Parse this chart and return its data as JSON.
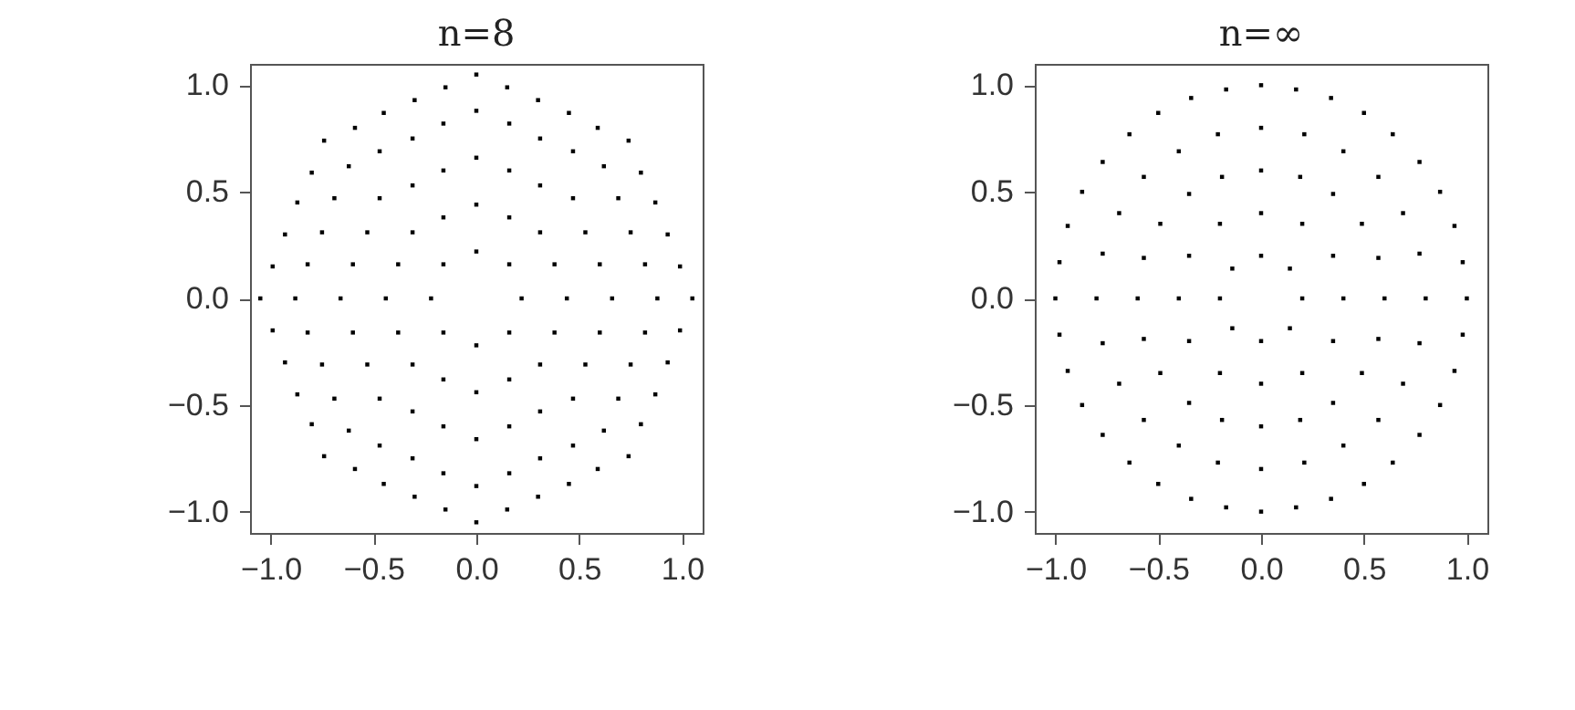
{
  "chart_data": [
    {
      "type": "scatter",
      "title": "n=8",
      "color": "#000000",
      "marker": "square",
      "xlim": [
        -1.1,
        1.1
      ],
      "ylim": [
        -1.1,
        1.1
      ],
      "xticks": [
        {
          "value": -1,
          "label": "−1.0"
        },
        {
          "value": -0.5,
          "label": "−0.5"
        },
        {
          "value": 0,
          "label": "0.0"
        },
        {
          "value": 0.5,
          "label": "0.5"
        },
        {
          "value": 1,
          "label": "1.0"
        }
      ],
      "yticks": [
        {
          "value": -1,
          "label": "−1.0"
        },
        {
          "value": -0.5,
          "label": "−0.5"
        },
        {
          "value": 0,
          "label": "0.0"
        },
        {
          "value": 0.5,
          "label": "0.5"
        },
        {
          "value": 1,
          "label": "1.0"
        }
      ],
      "x": [
        0.22,
        0.16,
        0.44,
        0.38,
        0.31,
        0.16,
        0.66,
        0.6,
        0.53,
        0.47,
        0.31,
        0.16,
        0.88,
        0.82,
        0.75,
        0.69,
        0.62,
        0.47,
        0.31,
        0.16,
        1.05,
        0.99,
        0.93,
        0.87,
        0.8,
        0.74,
        0.59,
        0.45,
        0.3,
        0.15,
        0,
        -0.16,
        0,
        -0.16,
        -0.31,
        -0.38,
        0,
        -0.16,
        -0.31,
        -0.47,
        -0.53,
        -0.6,
        0,
        -0.16,
        -0.31,
        -0.47,
        -0.62,
        -0.69,
        -0.75,
        -0.82,
        0,
        -0.15,
        -0.3,
        -0.45,
        -0.59,
        -0.74,
        -0.8,
        -0.87,
        -0.93,
        -0.99,
        -0.22,
        -0.16,
        -0.44,
        -0.38,
        -0.31,
        -0.16,
        -0.66,
        -0.6,
        -0.53,
        -0.47,
        -0.31,
        -0.16,
        -0.88,
        -0.82,
        -0.75,
        -0.69,
        -0.62,
        -0.47,
        -0.31,
        -0.16,
        -1.05,
        -0.99,
        -0.93,
        -0.87,
        -0.8,
        -0.74,
        -0.59,
        -0.45,
        -0.3,
        -0.15,
        0,
        0.16,
        0,
        0.16,
        0.31,
        0.38,
        0,
        0.16,
        0.31,
        0.47,
        0.53,
        0.6,
        0,
        0.16,
        0.31,
        0.47,
        0.62,
        0.69,
        0.75,
        0.82,
        0,
        0.15,
        0.3,
        0.45,
        0.59,
        0.74,
        0.8,
        0.87,
        0.93,
        0.99
      ],
      "values": [
        0,
        0.16,
        0,
        0.16,
        0.31,
        0.38,
        0,
        0.16,
        0.31,
        0.47,
        0.53,
        0.6,
        0,
        0.16,
        0.31,
        0.47,
        0.62,
        0.69,
        0.75,
        0.82,
        0,
        0.15,
        0.3,
        0.45,
        0.59,
        0.74,
        0.8,
        0.87,
        0.93,
        0.99,
        0.22,
        0.16,
        0.44,
        0.38,
        0.31,
        0.16,
        0.66,
        0.6,
        0.53,
        0.47,
        0.31,
        0.16,
        0.88,
        0.82,
        0.75,
        0.69,
        0.62,
        0.47,
        0.31,
        0.16,
        1.05,
        0.99,
        0.93,
        0.87,
        0.8,
        0.74,
        0.59,
        0.45,
        0.3,
        0.15,
        0,
        -0.16,
        0,
        -0.16,
        -0.31,
        -0.38,
        0,
        -0.16,
        -0.31,
        -0.47,
        -0.53,
        -0.6,
        0,
        -0.16,
        -0.31,
        -0.47,
        -0.62,
        -0.69,
        -0.75,
        -0.82,
        0,
        -0.15,
        -0.3,
        -0.45,
        -0.59,
        -0.74,
        -0.8,
        -0.87,
        -0.93,
        -0.99,
        -0.22,
        -0.16,
        -0.44,
        -0.38,
        -0.31,
        -0.16,
        -0.66,
        -0.6,
        -0.53,
        -0.47,
        -0.31,
        -0.16,
        -0.88,
        -0.82,
        -0.75,
        -0.69,
        -0.62,
        -0.47,
        -0.31,
        -0.16,
        -1.05,
        -0.99,
        -0.93,
        -0.87,
        -0.8,
        -0.74,
        -0.59,
        -0.45,
        -0.3,
        -0.15
      ]
    },
    {
      "type": "scatter",
      "title": "n=∞",
      "color": "#000000",
      "marker": "square",
      "xlim": [
        -1.1,
        1.1
      ],
      "ylim": [
        -1.1,
        1.1
      ],
      "xticks": [
        {
          "value": -1,
          "label": "−1.0"
        },
        {
          "value": -0.5,
          "label": "−0.5"
        },
        {
          "value": 0,
          "label": "0.0"
        },
        {
          "value": 0.5,
          "label": "0.5"
        },
        {
          "value": 1,
          "label": "1.0"
        }
      ],
      "yticks": [
        {
          "value": -1,
          "label": "−1.0"
        },
        {
          "value": -0.5,
          "label": "−0.5"
        },
        {
          "value": 0,
          "label": "0.0"
        },
        {
          "value": 0.5,
          "label": "0.5"
        },
        {
          "value": 1,
          "label": "1.0"
        }
      ],
      "x": [
        0.2,
        0.14,
        0.4,
        0.35,
        0.2,
        0.6,
        0.57,
        0.49,
        0.35,
        0.19,
        0.8,
        0.77,
        0.69,
        0.57,
        0.4,
        0.21,
        1,
        0.98,
        0.94,
        0.87,
        0.77,
        0.64,
        0.5,
        0.34,
        0.17,
        0,
        -0.14,
        0,
        -0.2,
        -0.35,
        0,
        -0.19,
        -0.35,
        -0.49,
        -0.57,
        0,
        -0.21,
        -0.4,
        -0.57,
        -0.69,
        -0.77,
        0,
        -0.17,
        -0.34,
        -0.5,
        -0.64,
        -0.77,
        -0.87,
        -0.94,
        -0.98,
        -0.2,
        -0.14,
        -0.4,
        -0.35,
        -0.2,
        -0.6,
        -0.57,
        -0.49,
        -0.35,
        -0.19,
        -0.8,
        -0.77,
        -0.69,
        -0.57,
        -0.4,
        -0.21,
        -1,
        -0.98,
        -0.94,
        -0.87,
        -0.77,
        -0.64,
        -0.5,
        -0.34,
        -0.17,
        0,
        0.14,
        0,
        0.2,
        0.35,
        0,
        0.19,
        0.35,
        0.49,
        0.57,
        0,
        0.21,
        0.4,
        0.57,
        0.69,
        0.77,
        0,
        0.17,
        0.34,
        0.5,
        0.64,
        0.77,
        0.87,
        0.94,
        0.98
      ],
      "values": [
        0,
        0.14,
        0,
        0.2,
        0.35,
        0,
        0.19,
        0.35,
        0.49,
        0.57,
        0,
        0.21,
        0.4,
        0.57,
        0.69,
        0.77,
        0,
        0.17,
        0.34,
        0.5,
        0.64,
        0.77,
        0.87,
        0.94,
        0.98,
        0.2,
        0.14,
        0.4,
        0.35,
        0.2,
        0.6,
        0.57,
        0.49,
        0.35,
        0.19,
        0.8,
        0.77,
        0.69,
        0.57,
        0.4,
        0.21,
        1,
        0.98,
        0.94,
        0.87,
        0.77,
        0.64,
        0.5,
        0.34,
        0.17,
        0,
        -0.14,
        0,
        -0.2,
        -0.35,
        0,
        -0.19,
        -0.35,
        -0.49,
        -0.57,
        0,
        -0.21,
        -0.4,
        -0.57,
        -0.69,
        -0.77,
        0,
        -0.17,
        -0.34,
        -0.5,
        -0.64,
        -0.77,
        -0.87,
        -0.94,
        -0.98,
        -0.2,
        -0.14,
        -0.4,
        -0.35,
        -0.2,
        -0.6,
        -0.57,
        -0.49,
        -0.35,
        -0.19,
        -0.8,
        -0.77,
        -0.69,
        -0.57,
        -0.4,
        -0.21,
        -1,
        -0.98,
        -0.94,
        -0.87,
        -0.77,
        -0.64,
        -0.5,
        -0.34,
        -0.17
      ]
    }
  ]
}
